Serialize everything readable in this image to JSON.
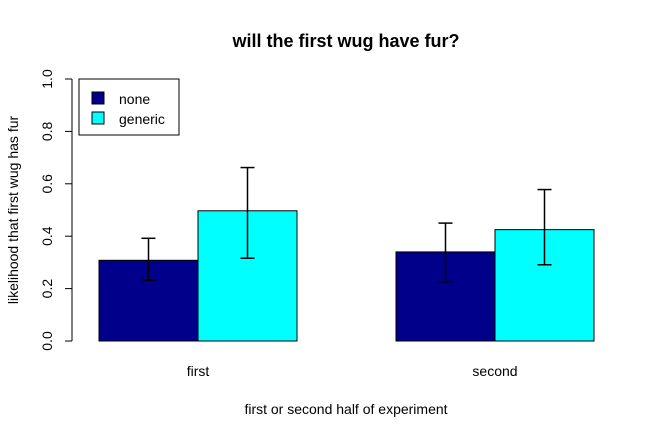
{
  "chart_data": {
    "type": "bar",
    "title": "will the first wug have fur?",
    "xlabel": "first or second half of experiment",
    "ylabel": "likelihood that first wug has fur",
    "categories": [
      "first",
      "second"
    ],
    "series": [
      {
        "name": "none",
        "color": "#00008B",
        "values": [
          0.308,
          0.34
        ],
        "error_low": [
          0.232,
          0.226
        ],
        "error_high": [
          0.392,
          0.45
        ]
      },
      {
        "name": "generic",
        "color": "#00FFFF",
        "values": [
          0.497,
          0.425
        ],
        "error_low": [
          0.316,
          0.291
        ],
        "error_high": [
          0.662,
          0.578
        ]
      }
    ],
    "ylim": [
      0,
      1
    ],
    "yticks": [
      "0.0",
      "0.2",
      "0.4",
      "0.6",
      "0.8",
      "1.0"
    ],
    "legend_position": "top-left",
    "grid": false
  }
}
